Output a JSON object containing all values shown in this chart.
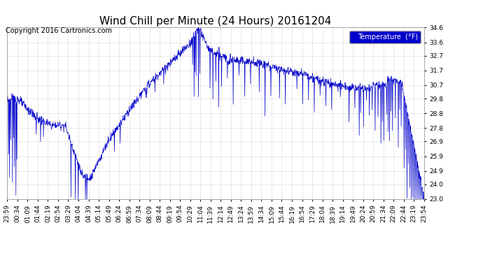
{
  "title": "Wind Chill per Minute (24 Hours) 20161204",
  "copyright": "Copyright 2016 Cartronics.com",
  "legend_label": "Temperature  (°F)",
  "legend_bg": "#0000cc",
  "legend_text_color": "#ffffff",
  "line_color": "#0000cc",
  "bg_color": "#ffffff",
  "plot_bg_color": "#ffffff",
  "grid_color": "#bbbbbb",
  "y_min": 23.0,
  "y_max": 34.6,
  "y_ticks": [
    23.0,
    24.0,
    24.9,
    25.9,
    26.9,
    27.8,
    28.8,
    29.8,
    30.7,
    31.7,
    32.7,
    33.6,
    34.6
  ],
  "x_tick_labels": [
    "23:59",
    "00:34",
    "01:09",
    "01:44",
    "02:19",
    "02:54",
    "03:29",
    "04:04",
    "04:39",
    "05:14",
    "05:49",
    "06:24",
    "06:59",
    "07:34",
    "08:09",
    "08:44",
    "09:19",
    "09:54",
    "10:29",
    "11:04",
    "11:39",
    "12:14",
    "12:49",
    "13:24",
    "13:59",
    "14:34",
    "15:09",
    "15:44",
    "16:19",
    "16:54",
    "17:29",
    "18:04",
    "18:39",
    "19:14",
    "19:49",
    "20:24",
    "20:59",
    "21:34",
    "22:09",
    "22:44",
    "23:19",
    "23:54"
  ],
  "title_fontsize": 11,
  "label_fontsize": 7,
  "copyright_fontsize": 7,
  "tick_fontsize": 6.5
}
